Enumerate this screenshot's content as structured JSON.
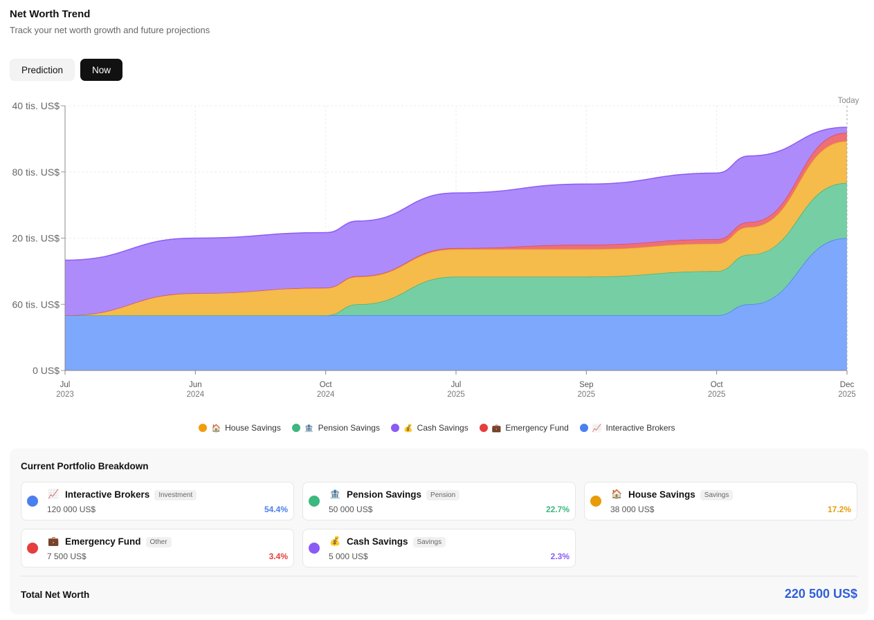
{
  "header": {
    "title": "Net Worth Trend",
    "subtitle": "Track your net worth growth and future projections"
  },
  "toggle": {
    "prediction_label": "Prediction",
    "now_label": "Now",
    "active": "now"
  },
  "chart_data": {
    "type": "area",
    "stacked": true,
    "today_label": "Today",
    "y_ticks": [
      "0 US$",
      "60 tis. US$",
      "20 tis. US$",
      "80 tis. US$",
      "40 tis. US$"
    ],
    "x_ticks": [
      {
        "month": "Jul",
        "year": "2023"
      },
      {
        "month": "Jun",
        "year": "2024"
      },
      {
        "month": "Oct",
        "year": "2024"
      },
      {
        "month": "Jul",
        "year": "2025"
      },
      {
        "month": "Sep",
        "year": "2025"
      },
      {
        "month": "Oct",
        "year": "2025"
      },
      {
        "month": "Dec",
        "year": "2025"
      }
    ],
    "ylim": [
      0,
      240000
    ],
    "grid": true,
    "legend_position": "bottom",
    "x": [
      0,
      1,
      2,
      2.25,
      3,
      4,
      5,
      5.25,
      6
    ],
    "series": [
      {
        "name": "Interactive Brokers",
        "color": "#7ea8fb",
        "stroke": "#4a7ff0",
        "values": [
          50000,
          50000,
          50000,
          50000,
          50000,
          50000,
          50000,
          60000,
          120000
        ]
      },
      {
        "name": "Pension Savings",
        "color": "#76cfa4",
        "stroke": "#3eb57d",
        "values": [
          0,
          0,
          0,
          10000,
          35000,
          35000,
          40000,
          45000,
          50000
        ]
      },
      {
        "name": "House Savings",
        "color": "#f5bb4b",
        "stroke": "#e8a21f",
        "values": [
          0,
          20000,
          25000,
          25000,
          25000,
          25000,
          25000,
          25000,
          38000
        ]
      },
      {
        "name": "Emergency Fund",
        "color": "#ee6f76",
        "stroke": "#e24a52",
        "values": [
          0,
          0,
          0,
          500,
          1000,
          4000,
          4000,
          4500,
          7500
        ]
      },
      {
        "name": "Cash Savings",
        "color": "#ad8bfb",
        "stroke": "#8a5cf5",
        "values": [
          50000,
          50000,
          50000,
          50000,
          50000,
          55000,
          60000,
          60000,
          5000
        ]
      }
    ]
  },
  "legend": [
    {
      "name": "House Savings",
      "emoji": "🏠",
      "color": "#f29d0b"
    },
    {
      "name": "Pension Savings",
      "emoji": "🏦",
      "color": "#3db87e"
    },
    {
      "name": "Cash Savings",
      "emoji": "💰",
      "color": "#8a5cf5"
    },
    {
      "name": "Emergency Fund",
      "emoji": "💼",
      "color": "#e53e3e"
    },
    {
      "name": "Interactive Brokers",
      "emoji": "📈",
      "color": "#4a7ff0"
    }
  ],
  "breakdown": {
    "title": "Current Portfolio Breakdown",
    "cards": [
      {
        "name": "Interactive Brokers",
        "emoji": "📈",
        "tag": "Investment",
        "amount": "120 000 US$",
        "percent": "54.4%",
        "color": "#4a7ff0"
      },
      {
        "name": "Pension Savings",
        "emoji": "🏦",
        "tag": "Pension",
        "amount": "50 000 US$",
        "percent": "22.7%",
        "color": "#3db87e"
      },
      {
        "name": "House Savings",
        "emoji": "🏠",
        "tag": "Savings",
        "amount": "38 000 US$",
        "percent": "17.2%",
        "color": "#e89c0a"
      },
      {
        "name": "Emergency Fund",
        "emoji": "💼",
        "tag": "Other",
        "amount": "7 500 US$",
        "percent": "3.4%",
        "color": "#e53e3e"
      },
      {
        "name": "Cash Savings",
        "emoji": "💰",
        "tag": "Savings",
        "amount": "5 000 US$",
        "percent": "2.3%",
        "color": "#8a5cf5"
      }
    ],
    "total_label": "Total Net Worth",
    "total_value": "220 500 US$",
    "total_color": "#2f5fd8"
  }
}
